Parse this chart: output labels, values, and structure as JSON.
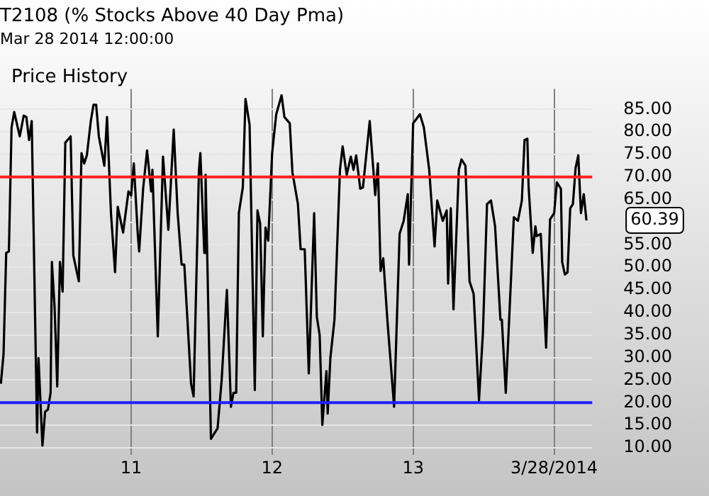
{
  "chart_data": {
    "type": "line",
    "title": "T2108 (% Stocks Above 40 Day Pma)",
    "subtitle": "Mar 28 2014 12:00:00",
    "annotations": [
      "Price History",
      {
        "text": "60.39",
        "x": 2014.229,
        "y": 60.39
      }
    ],
    "x": [
      2010.076,
      2010.095,
      2010.114,
      2010.133,
      2010.152,
      2010.171,
      2010.21,
      2010.238,
      2010.257,
      2010.276,
      2010.295,
      2010.333,
      2010.343,
      2010.371,
      2010.39,
      2010.41,
      2010.429,
      2010.438,
      2010.457,
      2010.476,
      2010.495,
      2010.514,
      2010.533,
      2010.571,
      2010.59,
      2010.629,
      2010.648,
      2010.667,
      2010.686,
      2010.714,
      2010.733,
      2010.752,
      2010.771,
      2010.81,
      2010.829,
      2010.857,
      2010.886,
      2010.905,
      2010.943,
      2010.981,
      2011.0,
      2011.019,
      2011.047,
      2011.057,
      2011.085,
      2011.113,
      2011.142,
      2011.151,
      2011.189,
      2011.226,
      2011.264,
      2011.302,
      2011.33,
      2011.358,
      2011.377,
      2011.425,
      2011.443,
      2011.481,
      2011.491,
      2011.519,
      2011.528,
      2011.566,
      2011.594,
      2011.613,
      2011.642,
      2011.679,
      2011.708,
      2011.726,
      2011.745,
      2011.764,
      2011.792,
      2011.811,
      2011.84,
      2011.877,
      2011.896,
      2011.915,
      2011.934,
      2011.953,
      2011.972,
      2012.0,
      2012.029,
      2012.067,
      2012.087,
      2012.125,
      2012.144,
      2012.183,
      2012.202,
      2012.231,
      2012.26,
      2012.298,
      2012.317,
      2012.337,
      2012.356,
      2012.385,
      2012.394,
      2012.413,
      2012.442,
      2012.481,
      2012.5,
      2012.529,
      2012.558,
      2012.577,
      2012.596,
      2012.625,
      2012.644,
      2012.692,
      2012.731,
      2012.75,
      2012.769,
      2012.788,
      2012.817,
      2012.865,
      2012.904,
      2012.933,
      2012.962,
      2012.971,
      2013.0,
      2013.048,
      2013.076,
      2013.114,
      2013.152,
      2013.171,
      2013.21,
      2013.238,
      2013.248,
      2013.267,
      2013.286,
      2013.324,
      2013.343,
      2013.371,
      2013.4,
      2013.429,
      2013.467,
      2013.495,
      2013.524,
      2013.552,
      2013.581,
      2013.619,
      2013.629,
      2013.657,
      2013.714,
      2013.743,
      2013.771,
      2013.79,
      2013.81,
      2013.819,
      2013.848,
      2013.867,
      2013.876,
      2013.905,
      2013.943,
      2013.971,
      2014.0,
      2014.019,
      2014.048,
      2014.057,
      2014.076,
      2014.095,
      2014.114,
      2014.133,
      2014.152,
      2014.171,
      2014.19,
      2014.21,
      2014.229
    ],
    "series": [
      {
        "color": "#000000",
        "values": [
          24.2,
          30.7,
          53.2,
          53.5,
          81,
          84.4,
          79,
          83.6,
          83.3,
          78.2,
          82.4,
          13.4,
          29.9,
          10.5,
          18,
          18.5,
          22.2,
          51.2,
          41.2,
          23.6,
          51.2,
          44.6,
          77.6,
          79,
          52.6,
          46.9,
          75.3,
          73,
          74.8,
          82.4,
          86,
          86,
          79,
          72.5,
          83.3,
          62,
          48.9,
          63.4,
          57.7,
          66.8,
          65.9,
          73,
          57.4,
          53.5,
          67.4,
          75.9,
          66.8,
          71.6,
          34.7,
          74.5,
          58.3,
          80.5,
          62,
          50.6,
          50.6,
          24.2,
          21.4,
          71.6,
          75.3,
          53.2,
          70.5,
          12,
          13.4,
          14.3,
          25,
          45,
          19.1,
          22.2,
          22.2,
          62,
          67.7,
          87.3,
          81.6,
          22.8,
          62.6,
          59.7,
          34.7,
          58.8,
          55.9,
          75.3,
          83.9,
          88.1,
          83.3,
          81.9,
          71,
          64,
          54,
          54,
          26.5,
          62,
          39,
          35,
          15.1,
          27,
          17.6,
          29.9,
          38.4,
          71.6,
          76.8,
          70.5,
          74.5,
          71.6,
          74.8,
          67.4,
          67.7,
          82.4,
          66,
          73,
          49.2,
          52,
          38.4,
          19.1,
          57.4,
          60.3,
          66.2,
          50.6,
          81.9,
          83.9,
          81,
          71.6,
          54.6,
          64.8,
          60.3,
          62.6,
          46.4,
          63.1,
          40.7,
          71.6,
          73.9,
          72.5,
          46.9,
          44.1,
          20.5,
          35.6,
          64,
          64.8,
          59.1,
          38.4,
          38.4,
          22.2,
          61.1,
          60.3,
          64.8,
          78.2,
          78.5,
          67.7,
          53.2,
          59.1,
          56.9,
          57.4,
          32.2,
          60.6,
          62,
          68.8,
          67.4,
          51.2,
          48.4,
          48.9,
          63.1,
          64,
          72,
          74.8,
          62,
          66.2,
          60.39
        ]
      }
    ],
    "xlim": [
      2010.07,
      2014.27
    ],
    "xticks": [
      {
        "value": 2011,
        "label": "11"
      },
      {
        "value": 2012,
        "label": "12"
      },
      {
        "value": 2013,
        "label": "13"
      },
      {
        "value": 2014,
        "label": "3/28/2014"
      }
    ],
    "ylim": [
      8.5,
      89.5
    ],
    "yticks": [
      {
        "value": 10,
        "label": "10.00"
      },
      {
        "value": 15,
        "label": "15.00"
      },
      {
        "value": 20,
        "label": "20.00"
      },
      {
        "value": 25,
        "label": "25.00"
      },
      {
        "value": 30,
        "label": "30.00"
      },
      {
        "value": 35,
        "label": "35.00"
      },
      {
        "value": 40,
        "label": "40.00"
      },
      {
        "value": 45,
        "label": "45.00"
      },
      {
        "value": 50,
        "label": "50.00"
      },
      {
        "value": 55,
        "label": "55.00"
      },
      {
        "value": 60,
        "label": null
      },
      {
        "value": 65,
        "label": "65.00"
      },
      {
        "value": 70,
        "label": "70.00"
      },
      {
        "value": 75,
        "label": "75.00"
      },
      {
        "value": 80,
        "label": "80.00"
      },
      {
        "value": 85,
        "label": "85.00"
      }
    ],
    "ref_lines": [
      {
        "axis": "y",
        "value": 70,
        "color": "#ff2020"
      },
      {
        "axis": "y",
        "value": 20,
        "color": "#2020ff"
      }
    ],
    "grid": true,
    "legend": false,
    "marker": "none",
    "line_style": "solid"
  }
}
